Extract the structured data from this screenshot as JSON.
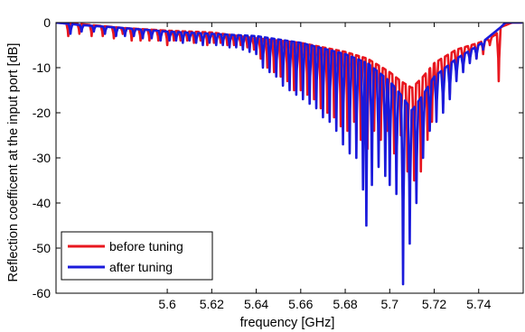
{
  "chart_data": {
    "type": "line",
    "title": "",
    "xlabel": "frequency [GHz]",
    "ylabel": "Reflection coefficent at the input port [dB]",
    "xlim": [
      5.55,
      5.76
    ],
    "ylim": [
      -60,
      0
    ],
    "x_ticks": [
      "5.6",
      "5.62",
      "5.64",
      "5.66",
      "5.68",
      "5.7",
      "5.72",
      "5.74"
    ],
    "y_ticks": [
      "0",
      "-10",
      "-20",
      "-30",
      "-40",
      "-50",
      "-60"
    ],
    "grid": false,
    "legend_position": "bottom-left",
    "series": [
      {
        "name": "before tuning",
        "color": "#e8171f",
        "envelope": [
          [
            5.55,
            0
          ],
          [
            5.56,
            -0.3
          ],
          [
            5.58,
            -1.2
          ],
          [
            5.6,
            -1.8
          ],
          [
            5.62,
            -2.2
          ],
          [
            5.64,
            -3.5
          ],
          [
            5.66,
            -4.5
          ],
          [
            5.68,
            -6.5
          ],
          [
            5.69,
            -8
          ],
          [
            5.7,
            -11
          ],
          [
            5.705,
            -13
          ],
          [
            5.71,
            -14.5
          ],
          [
            5.715,
            -12
          ],
          [
            5.72,
            -9
          ],
          [
            5.73,
            -6
          ],
          [
            5.74,
            -4.5
          ],
          [
            5.745,
            -3.5
          ],
          [
            5.748,
            -2.5
          ],
          [
            5.75,
            -1
          ],
          [
            5.755,
            0
          ],
          [
            5.76,
            0
          ]
        ],
        "dips": [
          [
            5.5555,
            -3
          ],
          [
            5.5605,
            -2.5
          ],
          [
            5.566,
            -3
          ],
          [
            5.571,
            -3
          ],
          [
            5.576,
            -3.5
          ],
          [
            5.58,
            -2.5
          ],
          [
            5.584,
            -4
          ],
          [
            5.588,
            -4
          ],
          [
            5.592,
            -4
          ],
          [
            5.596,
            -4
          ],
          [
            5.6,
            -5
          ],
          [
            5.603,
            -4
          ],
          [
            5.606,
            -4
          ],
          [
            5.609,
            -4
          ],
          [
            5.612,
            -4.5
          ],
          [
            5.615,
            -4
          ],
          [
            5.618,
            -5
          ],
          [
            5.621,
            -4.5
          ],
          [
            5.624,
            -4.5
          ],
          [
            5.627,
            -5
          ],
          [
            5.63,
            -5
          ],
          [
            5.633,
            -5
          ],
          [
            5.636,
            -5.5
          ],
          [
            5.639,
            -6
          ],
          [
            5.642,
            -8
          ],
          [
            5.645,
            -10
          ],
          [
            5.648,
            -11
          ],
          [
            5.651,
            -12
          ],
          [
            5.654,
            -13
          ],
          [
            5.657,
            -15
          ],
          [
            5.66,
            -15
          ],
          [
            5.663,
            -16
          ],
          [
            5.666,
            -17
          ],
          [
            5.669,
            -19
          ],
          [
            5.672,
            -20
          ],
          [
            5.675,
            -21
          ],
          [
            5.678,
            -23
          ],
          [
            5.681,
            -24
          ],
          [
            5.684,
            -22
          ],
          [
            5.687,
            -26
          ],
          [
            5.69,
            -28
          ],
          [
            5.693,
            -24
          ],
          [
            5.696,
            -26
          ],
          [
            5.699,
            -24
          ],
          [
            5.702,
            -29
          ],
          [
            5.705,
            -25
          ],
          [
            5.708,
            -33
          ],
          [
            5.711,
            -35
          ],
          [
            5.714,
            -33
          ],
          [
            5.717,
            -26
          ],
          [
            5.719,
            -22
          ],
          [
            5.721,
            -19
          ],
          [
            5.724,
            -18
          ],
          [
            5.727,
            -16
          ],
          [
            5.73,
            -12
          ],
          [
            5.733,
            -10
          ],
          [
            5.736,
            -8
          ],
          [
            5.739,
            -8
          ],
          [
            5.742,
            -7
          ],
          [
            5.745,
            -5
          ],
          [
            5.749,
            -13
          ]
        ]
      },
      {
        "name": "after tuning",
        "color": "#1a1adb",
        "envelope": [
          [
            5.55,
            0
          ],
          [
            5.56,
            -0.5
          ],
          [
            5.58,
            -1.2
          ],
          [
            5.6,
            -2
          ],
          [
            5.62,
            -2.5
          ],
          [
            5.64,
            -3
          ],
          [
            5.66,
            -4.5
          ],
          [
            5.68,
            -7
          ],
          [
            5.69,
            -9
          ],
          [
            5.7,
            -13
          ],
          [
            5.705,
            -16
          ],
          [
            5.71,
            -19.5
          ],
          [
            5.715,
            -16
          ],
          [
            5.72,
            -12
          ],
          [
            5.73,
            -8
          ],
          [
            5.74,
            -5
          ],
          [
            5.745,
            -3
          ],
          [
            5.75,
            -1
          ],
          [
            5.752,
            0
          ],
          [
            5.76,
            0
          ]
        ],
        "dips": [
          [
            5.5565,
            -2.5
          ],
          [
            5.5615,
            -2
          ],
          [
            5.567,
            -2
          ],
          [
            5.572,
            -2.5
          ],
          [
            5.577,
            -3
          ],
          [
            5.581,
            -3
          ],
          [
            5.585,
            -3
          ],
          [
            5.589,
            -3.5
          ],
          [
            5.593,
            -3.5
          ],
          [
            5.597,
            -4
          ],
          [
            5.601,
            -4
          ],
          [
            5.604,
            -4
          ],
          [
            5.607,
            -4.5
          ],
          [
            5.61,
            -4
          ],
          [
            5.613,
            -4.5
          ],
          [
            5.616,
            -5
          ],
          [
            5.619,
            -4.5
          ],
          [
            5.622,
            -5
          ],
          [
            5.625,
            -5
          ],
          [
            5.628,
            -5.5
          ],
          [
            5.631,
            -5.5
          ],
          [
            5.634,
            -6
          ],
          [
            5.637,
            -6.5
          ],
          [
            5.64,
            -7
          ],
          [
            5.643,
            -10
          ],
          [
            5.646,
            -11
          ],
          [
            5.649,
            -12
          ],
          [
            5.652,
            -14
          ],
          [
            5.655,
            -15
          ],
          [
            5.658,
            -16
          ],
          [
            5.661,
            -17
          ],
          [
            5.664,
            -18
          ],
          [
            5.667,
            -19
          ],
          [
            5.67,
            -21
          ],
          [
            5.673,
            -22
          ],
          [
            5.676,
            -24
          ],
          [
            5.679,
            -27
          ],
          [
            5.682,
            -29
          ],
          [
            5.685,
            -30
          ],
          [
            5.688,
            -37
          ],
          [
            5.6895,
            -45
          ],
          [
            5.692,
            -36
          ],
          [
            5.695,
            -32
          ],
          [
            5.698,
            -34
          ],
          [
            5.7,
            -36
          ],
          [
            5.703,
            -38
          ],
          [
            5.706,
            -58
          ],
          [
            5.709,
            -49
          ],
          [
            5.712,
            -40
          ],
          [
            5.715,
            -30
          ],
          [
            5.718,
            -24
          ],
          [
            5.721,
            -22
          ],
          [
            5.724,
            -20
          ],
          [
            5.727,
            -17
          ],
          [
            5.73,
            -13
          ],
          [
            5.733,
            -11
          ],
          [
            5.736,
            -9
          ],
          [
            5.739,
            -8
          ],
          [
            5.742,
            -6
          ]
        ]
      }
    ]
  }
}
